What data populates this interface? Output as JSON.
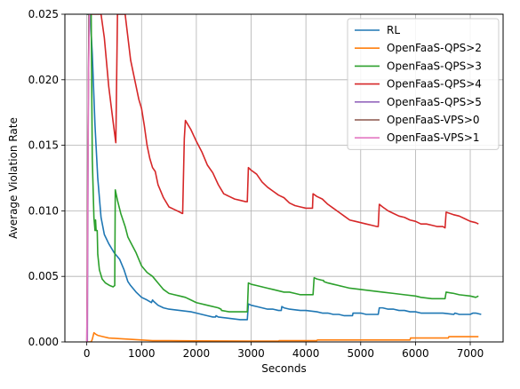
{
  "chart_data": {
    "type": "line",
    "title": "",
    "xlabel": "Seconds",
    "ylabel": "Average Violation Rate",
    "xlim": [
      -400,
      7600
    ],
    "ylim": [
      0,
      0.025
    ],
    "xticks": [
      0,
      1000,
      2000,
      3000,
      4000,
      5000,
      6000,
      7000
    ],
    "xtick_labels": [
      "0",
      "1000",
      "2000",
      "3000",
      "4000",
      "5000",
      "6000",
      "7000"
    ],
    "yticks": [
      0,
      0.005,
      0.01,
      0.015,
      0.02,
      0.025
    ],
    "ytick_labels": [
      "0.000",
      "0.005",
      "0.010",
      "0.015",
      "0.020",
      "0.025"
    ],
    "grid": true,
    "legend_position": "top-right",
    "series": [
      {
        "name": "RL",
        "color": "#1f77b4",
        "x": [
          0,
          20,
          60,
          100,
          150,
          200,
          260,
          320,
          400,
          500,
          600,
          680,
          750,
          800,
          900,
          1000,
          1100,
          1180,
          1200,
          1220,
          1300,
          1400,
          1500,
          1600,
          1700,
          1800,
          1900,
          2000,
          2100,
          2200,
          2300,
          2350,
          2360,
          2400,
          2500,
          2600,
          2700,
          2800,
          2900,
          2930,
          2950,
          3000,
          3100,
          3200,
          3300,
          3400,
          3500,
          3550,
          3560,
          3600,
          3700,
          3800,
          3900,
          4000,
          4100,
          4200,
          4300,
          4400,
          4500,
          4600,
          4700,
          4800,
          4850,
          4860,
          4900,
          5000,
          5100,
          5200,
          5300,
          5320,
          5340,
          5400,
          5500,
          5600,
          5700,
          5800,
          5900,
          6000,
          6100,
          6200,
          6300,
          6400,
          6500,
          6700,
          6720,
          6800,
          7000,
          7050,
          7100,
          7200
        ],
        "y": [
          0.025,
          0.025,
          0.025,
          0.022,
          0.0165,
          0.0125,
          0.0095,
          0.0082,
          0.0075,
          0.0068,
          0.0063,
          0.0055,
          0.0046,
          0.0043,
          0.0038,
          0.0034,
          0.0032,
          0.003,
          0.0032,
          0.0031,
          0.0028,
          0.0026,
          0.0025,
          0.00245,
          0.0024,
          0.00235,
          0.0023,
          0.0022,
          0.0021,
          0.002,
          0.0019,
          0.0019,
          0.002,
          0.0019,
          0.00185,
          0.0018,
          0.00175,
          0.0017,
          0.0017,
          0.0017,
          0.0029,
          0.0028,
          0.0027,
          0.0026,
          0.0025,
          0.0025,
          0.0024,
          0.0024,
          0.0027,
          0.0026,
          0.0025,
          0.00245,
          0.0024,
          0.0024,
          0.00235,
          0.0023,
          0.0022,
          0.0022,
          0.0021,
          0.0021,
          0.002,
          0.002,
          0.002,
          0.0022,
          0.0022,
          0.0022,
          0.0021,
          0.0021,
          0.0021,
          0.0021,
          0.0026,
          0.0026,
          0.0025,
          0.0025,
          0.0024,
          0.0024,
          0.0023,
          0.0023,
          0.0022,
          0.0022,
          0.0022,
          0.0022,
          0.0022,
          0.0021,
          0.0022,
          0.0021,
          0.0021,
          0.0022,
          0.0022,
          0.0021
        ]
      },
      {
        "name": "OpenFaaS-QPS>2",
        "color": "#ff7f0e",
        "x": [
          0,
          80,
          100,
          130,
          160,
          200,
          300,
          400,
          600,
          800,
          1000,
          1200,
          1500,
          2000,
          2500,
          3000,
          3500,
          3510,
          4000,
          4200,
          4210,
          4500,
          5000,
          5500,
          5900,
          5910,
          6400,
          6600,
          6610,
          7000,
          7150
        ],
        "y": [
          0,
          0,
          0.0002,
          0.0007,
          0.0006,
          0.0005,
          0.0004,
          0.0003,
          0.00025,
          0.0002,
          0.00015,
          0.0001,
          0.0001,
          8e-05,
          7e-05,
          6e-05,
          6e-05,
          0.0001,
          0.0001,
          0.0001,
          0.00015,
          0.00015,
          0.00015,
          0.00015,
          0.00015,
          0.0003,
          0.0003,
          0.0003,
          0.0004,
          0.0004,
          0.0004
        ]
      },
      {
        "name": "OpenFaaS-QPS>3",
        "color": "#2ca02c",
        "x": [
          0,
          40,
          80,
          100,
          130,
          150,
          160,
          170,
          190,
          200,
          230,
          280,
          340,
          420,
          480,
          510,
          520,
          560,
          620,
          700,
          750,
          800,
          900,
          1000,
          1100,
          1200,
          1300,
          1400,
          1500,
          1600,
          1700,
          1800,
          1900,
          2000,
          2200,
          2400,
          2450,
          2460,
          2600,
          2900,
          2930,
          2950,
          3000,
          3100,
          3200,
          3300,
          3400,
          3500,
          3600,
          3700,
          3800,
          3900,
          4000,
          4100,
          4130,
          4150,
          4200,
          4300,
          4320,
          4330,
          4400,
          4500,
          4600,
          4700,
          4800,
          5000,
          5200,
          5400,
          5600,
          5800,
          6000,
          6100,
          6300,
          6500,
          6540,
          6560,
          6700,
          6800,
          7000,
          7100,
          7150
        ],
        "y": [
          0.025,
          0.025,
          0.025,
          0.014,
          0.0095,
          0.0085,
          0.0093,
          0.0085,
          0.0085,
          0.0067,
          0.0055,
          0.0048,
          0.0045,
          0.0043,
          0.0042,
          0.0043,
          0.0116,
          0.0108,
          0.0098,
          0.0088,
          0.008,
          0.0076,
          0.0068,
          0.0058,
          0.0053,
          0.005,
          0.0045,
          0.004,
          0.0037,
          0.0036,
          0.0035,
          0.0034,
          0.0032,
          0.003,
          0.0028,
          0.0026,
          0.0025,
          0.0024,
          0.0023,
          0.0023,
          0.0023,
          0.0045,
          0.0044,
          0.0043,
          0.0042,
          0.0041,
          0.004,
          0.0039,
          0.0038,
          0.0038,
          0.0037,
          0.0036,
          0.0036,
          0.0036,
          0.0036,
          0.0049,
          0.0048,
          0.0047,
          0.0047,
          0.0046,
          0.0045,
          0.0044,
          0.0043,
          0.0042,
          0.0041,
          0.004,
          0.0039,
          0.0038,
          0.0037,
          0.0036,
          0.0035,
          0.0034,
          0.0033,
          0.0033,
          0.0033,
          0.0038,
          0.0037,
          0.0036,
          0.0035,
          0.0034,
          0.0035
        ]
      },
      {
        "name": "OpenFaaS-QPS>4",
        "color": "#d62728",
        "x": [
          80,
          120,
          150,
          170,
          180,
          200,
          260,
          320,
          400,
          480,
          520,
          530,
          560,
          600,
          650,
          700,
          800,
          900,
          950,
          1000,
          1050,
          1100,
          1150,
          1200,
          1250,
          1300,
          1400,
          1500,
          1600,
          1700,
          1740,
          1750,
          1780,
          1800,
          1900,
          2000,
          2100,
          2150,
          2200,
          2300,
          2400,
          2500,
          2600,
          2700,
          2800,
          2900,
          2930,
          2950,
          3000,
          3100,
          3200,
          3300,
          3400,
          3500,
          3600,
          3700,
          3800,
          3900,
          4000,
          4100,
          4120,
          4130,
          4200,
          4300,
          4400,
          4500,
          4600,
          4700,
          4800,
          4900,
          5000,
          5100,
          5200,
          5300,
          5320,
          5340,
          5400,
          5500,
          5600,
          5700,
          5800,
          5900,
          6000,
          6100,
          6200,
          6300,
          6400,
          6500,
          6540,
          6560,
          6700,
          6800,
          6900,
          7000,
          7100,
          7150
        ],
        "y": [
          0.025,
          0.025,
          0.025,
          0.025,
          0.025,
          0.025,
          0.025,
          0.0232,
          0.0195,
          0.0168,
          0.0155,
          0.0152,
          0.025,
          0.025,
          0.025,
          0.025,
          0.0215,
          0.0195,
          0.0185,
          0.0178,
          0.0165,
          0.015,
          0.014,
          0.0133,
          0.013,
          0.012,
          0.011,
          0.0103,
          0.0101,
          0.0099,
          0.0098,
          0.0098,
          0.0155,
          0.0169,
          0.0162,
          0.0153,
          0.0145,
          0.014,
          0.0135,
          0.0129,
          0.012,
          0.0113,
          0.0111,
          0.0109,
          0.0108,
          0.0107,
          0.0107,
          0.0133,
          0.0131,
          0.0128,
          0.0122,
          0.0118,
          0.0115,
          0.0112,
          0.011,
          0.0106,
          0.0104,
          0.0103,
          0.0102,
          0.0102,
          0.0102,
          0.0113,
          0.0111,
          0.0109,
          0.0105,
          0.0102,
          0.0099,
          0.0096,
          0.0093,
          0.0092,
          0.0091,
          0.009,
          0.0089,
          0.0088,
          0.0088,
          0.0105,
          0.0103,
          0.01,
          0.0098,
          0.0096,
          0.0095,
          0.0093,
          0.0092,
          0.009,
          0.009,
          0.0089,
          0.0088,
          0.0088,
          0.0087,
          0.0099,
          0.0097,
          0.0096,
          0.0094,
          0.0092,
          0.0091,
          0.009
        ]
      },
      {
        "name": "OpenFaaS-QPS>5",
        "color": "#9467bd",
        "x": [
          0,
          10,
          20,
          30,
          40
        ],
        "y": [
          0,
          0,
          0.01,
          0.02,
          0.025
        ]
      },
      {
        "name": "OpenFaaS-VPS>0",
        "color": "#8c564b",
        "x": [
          0,
          20,
          40
        ],
        "y": [
          0,
          0.015,
          0.025
        ]
      },
      {
        "name": "OpenFaaS-VPS>1",
        "color": "#e377c2",
        "x": [
          0,
          10,
          30,
          50
        ],
        "y": [
          0,
          0.005,
          0.02,
          0.025
        ]
      }
    ]
  }
}
